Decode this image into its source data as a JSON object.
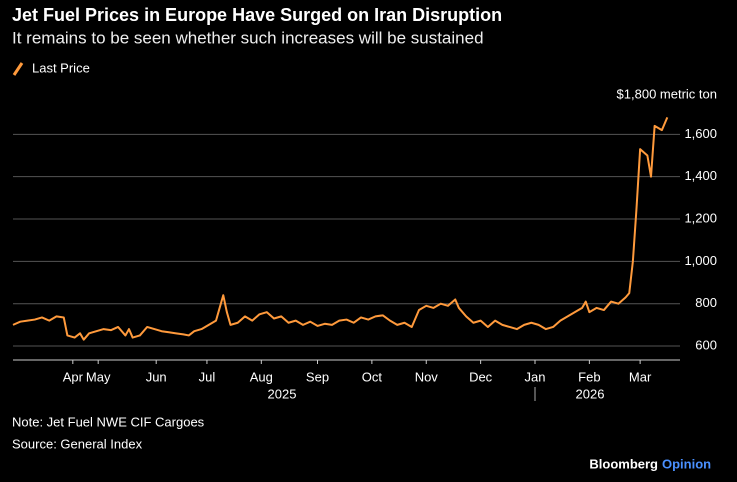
{
  "chart_data": {
    "type": "line",
    "title": "Jet Fuel Prices in Europe Have Surged on Iran Disruption",
    "subtitle": "It remains to be seen whether such increases will be sustained",
    "series": [
      {
        "name": "Last Price",
        "color": "#ff9a3c",
        "x": [
          0,
          4,
          8,
          12,
          16,
          20,
          24,
          28,
          30,
          34,
          37,
          39,
          42,
          46,
          50,
          54,
          58,
          62,
          64,
          66,
          70,
          74,
          78,
          82,
          86,
          90,
          94,
          97,
          100,
          104,
          108,
          112,
          114,
          116,
          118,
          120,
          124,
          128,
          132,
          136,
          140,
          144,
          148,
          152,
          156,
          160,
          164,
          168,
          172,
          176,
          180,
          184,
          188,
          192,
          196,
          200,
          204,
          208,
          212,
          216,
          220,
          224,
          228,
          232,
          236,
          240,
          244,
          246,
          250,
          254,
          258,
          262,
          266,
          270,
          274,
          278,
          282,
          286,
          290,
          294,
          298,
          302,
          306,
          310,
          314,
          316,
          318,
          322,
          326,
          330,
          334,
          338,
          340,
          342,
          344,
          346,
          350,
          352,
          354,
          358,
          361
        ],
        "values": [
          700,
          715,
          720,
          725,
          735,
          720,
          740,
          735,
          650,
          640,
          660,
          630,
          660,
          670,
          680,
          675,
          690,
          650,
          680,
          640,
          650,
          690,
          680,
          670,
          665,
          660,
          655,
          650,
          670,
          680,
          700,
          720,
          780,
          840,
          760,
          700,
          710,
          740,
          720,
          750,
          760,
          730,
          740,
          710,
          720,
          700,
          715,
          695,
          705,
          700,
          720,
          725,
          710,
          735,
          725,
          740,
          745,
          720,
          700,
          710,
          690,
          770,
          790,
          780,
          800,
          790,
          820,
          780,
          740,
          710,
          720,
          690,
          720,
          700,
          690,
          680,
          700,
          710,
          700,
          680,
          690,
          720,
          740,
          760,
          780,
          810,
          760,
          780,
          770,
          810,
          800,
          830,
          850,
          1000,
          1250,
          1530,
          1500,
          1400,
          1640,
          1620,
          1680
        ]
      }
    ],
    "xlim": [
      0,
      368
    ],
    "xticks": [
      {
        "value": 33,
        "label": "Apr"
      },
      {
        "value": 47,
        "label": "May"
      },
      {
        "value": 79,
        "label": "Jun"
      },
      {
        "value": 107,
        "label": "Jul"
      },
      {
        "value": 137,
        "label": "Aug"
      },
      {
        "value": 168,
        "label": "Sep"
      },
      {
        "value": 198,
        "label": "Oct"
      },
      {
        "value": 228,
        "label": "Nov"
      },
      {
        "value": 258,
        "label": "Dec"
      },
      {
        "value": 288,
        "label": "Jan"
      },
      {
        "value": 318,
        "label": "Feb"
      },
      {
        "value": 346,
        "label": "Mar"
      }
    ],
    "years": [
      "2025",
      "2026"
    ],
    "ylim": [
      534,
      1800
    ],
    "yticks": [
      600,
      800,
      {
        "value": 1000,
        "label": "1,000"
      },
      {
        "value": 1200,
        "label": "1,200"
      },
      {
        "value": 1400,
        "label": "1,400"
      },
      {
        "value": 1600,
        "label": "1,600"
      },
      {
        "value": 1800,
        "label": "$1,800 metric ton"
      }
    ],
    "grid": true,
    "note": "Note: Jet Fuel NWE CIF Cargoes",
    "source": "Source: General Index",
    "brand": "Bloomberg",
    "brand_suffix": "Opinion"
  }
}
